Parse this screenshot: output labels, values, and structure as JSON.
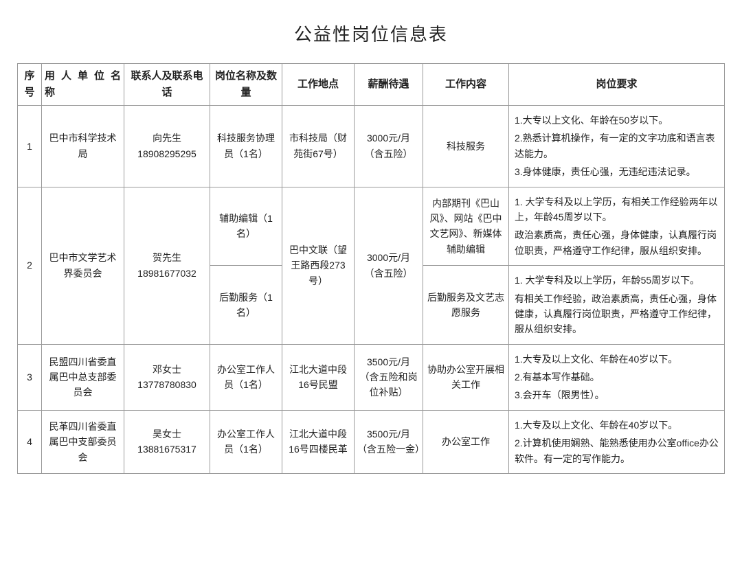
{
  "title": "公益性岗位信息表",
  "columns": {
    "seq": "序号",
    "org": "用人单位名　　　称",
    "contact": "联系人及联系电话",
    "position": "岗位名称及数量",
    "location": "工作地点",
    "salary": "薪酬待遇",
    "content": "工作内容",
    "requirement": "岗位要求"
  },
  "rows": [
    {
      "seq": "1",
      "org": "巴中市科学技术局",
      "contact": "向先生 18908295295",
      "position": "科技服务协理员（1名）",
      "location": "市科技局（财苑街67号）",
      "salary": "3000元/月（含五险）",
      "content": "科技服务",
      "requirements": [
        "1.大专以上文化、年龄在50岁以下。",
        "2.熟悉计算机操作，有一定的文字功底和语言表达能力。",
        "3.身体健康，责任心强，无违纪违法记录。"
      ]
    },
    {
      "seq": "2",
      "org": "巴中市文学艺术界委员会",
      "contact": "贺先生 18981677032",
      "location": "巴中文联（望王路西段273号）",
      "salary": "3000元/月（含五险）",
      "sub": [
        {
          "position": "辅助编辑（1名）",
          "content": "内部期刊《巴山风》、网站《巴中文艺网》、新媒体辅助编辑",
          "requirements": [
            "1. 大学专科及以上学历，有相关工作经验两年以上，年龄45周岁以下。",
            "政治素质高，责任心强，身体健康，认真履行岗位职责，严格遵守工作纪律，服从组织安排。"
          ]
        },
        {
          "position": "后勤服务（1名）",
          "content": "后勤服务及文艺志愿服务",
          "requirements": [
            "1. 大学专科及以上学历，年龄55周岁以下。",
            "有相关工作经验，政治素质高，责任心强，身体健康，认真履行岗位职责，严格遵守工作纪律，服从组织安排。"
          ]
        }
      ]
    },
    {
      "seq": "3",
      "org": "民盟四川省委直属巴中总支部委员会",
      "contact": "邓女士 13778780830",
      "position": "办公室工作人员（1名）",
      "location": "江北大道中段16号民盟",
      "salary": "3500元/月（含五险和岗位补贴）",
      "content": "协助办公室开展相关工作",
      "requirements": [
        "1.大专及以上文化、年龄在40岁以下。",
        "2.有基本写作基础。",
        "3.会开车（限男性）。"
      ]
    },
    {
      "seq": "4",
      "org": "民革四川省委直属巴中支部委员会",
      "contact": "吴女士 13881675317",
      "position": "办公室工作人员（1名）",
      "location": "江北大道中段16号四楼民革",
      "salary": "3500元/月（含五险一金）",
      "content": "办公室工作",
      "requirements": [
        "1.大专及以上文化、年龄在40岁以下。",
        "2.计算机使用娴熟、能熟悉使用办公室office办公软件。有一定的写作能力。"
      ]
    }
  ]
}
